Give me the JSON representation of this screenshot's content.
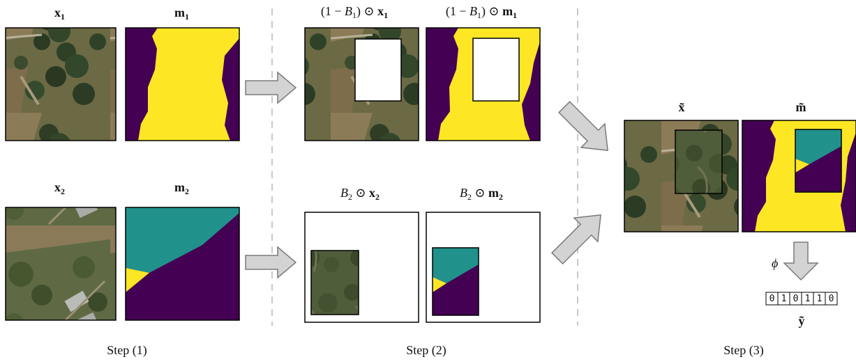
{
  "labels": {
    "x1": "x",
    "x1_sub": "1",
    "m1": "m",
    "m1_sub": "1",
    "x2": "x",
    "x2_sub": "2",
    "m2": "m",
    "m2_sub": "2",
    "cut_x1_prefix": "(1 − ",
    "cut_x1_B": "B",
    "cut_x1_Bsub": "1",
    "cut_x1_suffix": ") ⊙ ",
    "cut_x1_var": "x",
    "cut_x1_varsub": "1",
    "cut_m1_prefix": "(1 − ",
    "cut_m1_B": "B",
    "cut_m1_Bsub": "1",
    "cut_m1_suffix": ") ⊙ ",
    "cut_m1_var": "m",
    "cut_m1_varsub": "1",
    "paste_x2_B": "B",
    "paste_x2_Bsub": "2",
    "paste_x2_op": " ⊙ ",
    "paste_x2_var": "x",
    "paste_x2_varsub": "2",
    "paste_m2_B": "B",
    "paste_m2_Bsub": "2",
    "paste_m2_op": " ⊙ ",
    "paste_m2_var": "m",
    "paste_m2_varsub": "2",
    "x_tilde": "x̃",
    "m_tilde": "m̃",
    "y_tilde": "ỹ",
    "phi": "ϕ"
  },
  "steps": [
    "Step (1)",
    "Step (2)",
    "Step (3)"
  ],
  "label_vector": [
    "0",
    "1",
    "0",
    "1",
    "1",
    "0"
  ],
  "colors": {
    "yellow": "#fde725",
    "purple": "#440154",
    "teal": "#21918c",
    "arrow_fill": "#d3d3d3",
    "arrow_stroke": "#7a7a7a",
    "divider": "#c8c8c8"
  }
}
